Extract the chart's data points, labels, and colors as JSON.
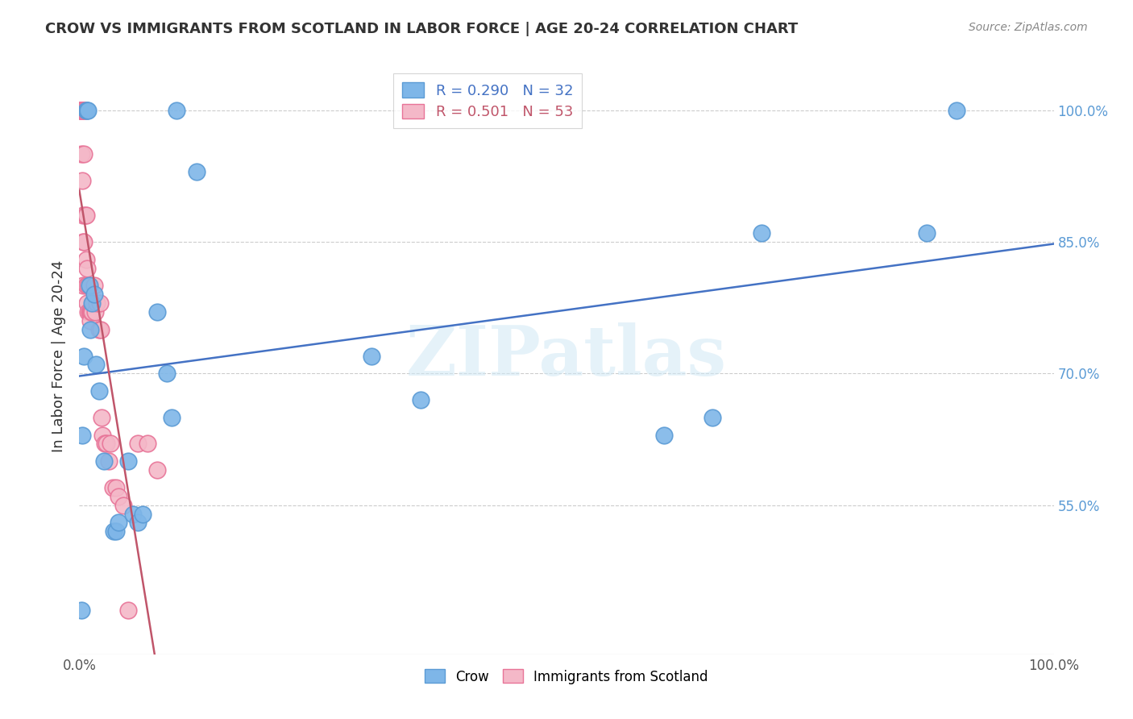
{
  "title": "CROW VS IMMIGRANTS FROM SCOTLAND IN LABOR FORCE | AGE 20-24 CORRELATION CHART",
  "source": "Source: ZipAtlas.com",
  "xlabel": "",
  "ylabel": "In Labor Force | Age 20-24",
  "xlim": [
    0.0,
    1.0
  ],
  "ylim": [
    0.38,
    1.06
  ],
  "xtick_labels": [
    "0.0%",
    "100.0%"
  ],
  "xtick_positions": [
    0.0,
    1.0
  ],
  "ytick_labels": [
    "55.0%",
    "70.0%",
    "85.0%",
    "100.0%"
  ],
  "ytick_positions": [
    0.55,
    0.7,
    0.85,
    1.0
  ],
  "grid_color": "#cccccc",
  "background_color": "#ffffff",
  "crow_color": "#7EB6E8",
  "crow_edge_color": "#5B9BD5",
  "scotland_color": "#F4B8C8",
  "scotland_edge_color": "#E87498",
  "crow_R": 0.29,
  "crow_N": 32,
  "scotland_R": 0.501,
  "scotland_N": 53,
  "crow_line_color": "#4472C4",
  "scotland_line_color": "#C0556A",
  "watermark": "ZIPatlas",
  "crow_scatter_x": [
    0.002,
    0.003,
    0.005,
    0.007,
    0.008,
    0.009,
    0.01,
    0.011,
    0.013,
    0.015,
    0.017,
    0.02,
    0.025,
    0.035,
    0.038,
    0.04,
    0.05,
    0.055,
    0.06,
    0.065,
    0.08,
    0.09,
    0.095,
    0.1,
    0.12,
    0.3,
    0.35,
    0.6,
    0.65,
    0.7,
    0.87,
    0.9
  ],
  "crow_scatter_y": [
    0.43,
    0.63,
    0.72,
    1.0,
    1.0,
    1.0,
    0.8,
    0.75,
    0.78,
    0.79,
    0.71,
    0.68,
    0.6,
    0.52,
    0.52,
    0.53,
    0.6,
    0.54,
    0.53,
    0.54,
    0.77,
    0.7,
    0.65,
    1.0,
    0.93,
    0.72,
    0.67,
    0.63,
    0.65,
    0.86,
    0.86,
    1.0
  ],
  "scotland_scatter_x": [
    0.001,
    0.001,
    0.001,
    0.002,
    0.002,
    0.002,
    0.002,
    0.003,
    0.003,
    0.003,
    0.004,
    0.004,
    0.004,
    0.004,
    0.005,
    0.005,
    0.005,
    0.006,
    0.006,
    0.007,
    0.007,
    0.007,
    0.008,
    0.008,
    0.009,
    0.009,
    0.01,
    0.01,
    0.011,
    0.011,
    0.012,
    0.013,
    0.014,
    0.015,
    0.016,
    0.018,
    0.02,
    0.021,
    0.022,
    0.023,
    0.024,
    0.026,
    0.028,
    0.03,
    0.032,
    0.034,
    0.038,
    0.04,
    0.045,
    0.05,
    0.06,
    0.07,
    0.08
  ],
  "scotland_scatter_y": [
    1.0,
    1.0,
    1.0,
    1.0,
    1.0,
    1.0,
    0.95,
    1.0,
    1.0,
    0.92,
    1.0,
    0.88,
    0.85,
    0.8,
    1.0,
    0.95,
    0.85,
    1.0,
    0.88,
    0.88,
    0.83,
    0.8,
    0.82,
    0.78,
    0.8,
    0.77,
    0.8,
    0.77,
    0.77,
    0.76,
    0.77,
    0.77,
    0.78,
    0.8,
    0.77,
    0.78,
    0.75,
    0.78,
    0.75,
    0.65,
    0.63,
    0.62,
    0.62,
    0.6,
    0.62,
    0.57,
    0.57,
    0.56,
    0.55,
    0.43,
    0.62,
    0.62,
    0.59
  ]
}
